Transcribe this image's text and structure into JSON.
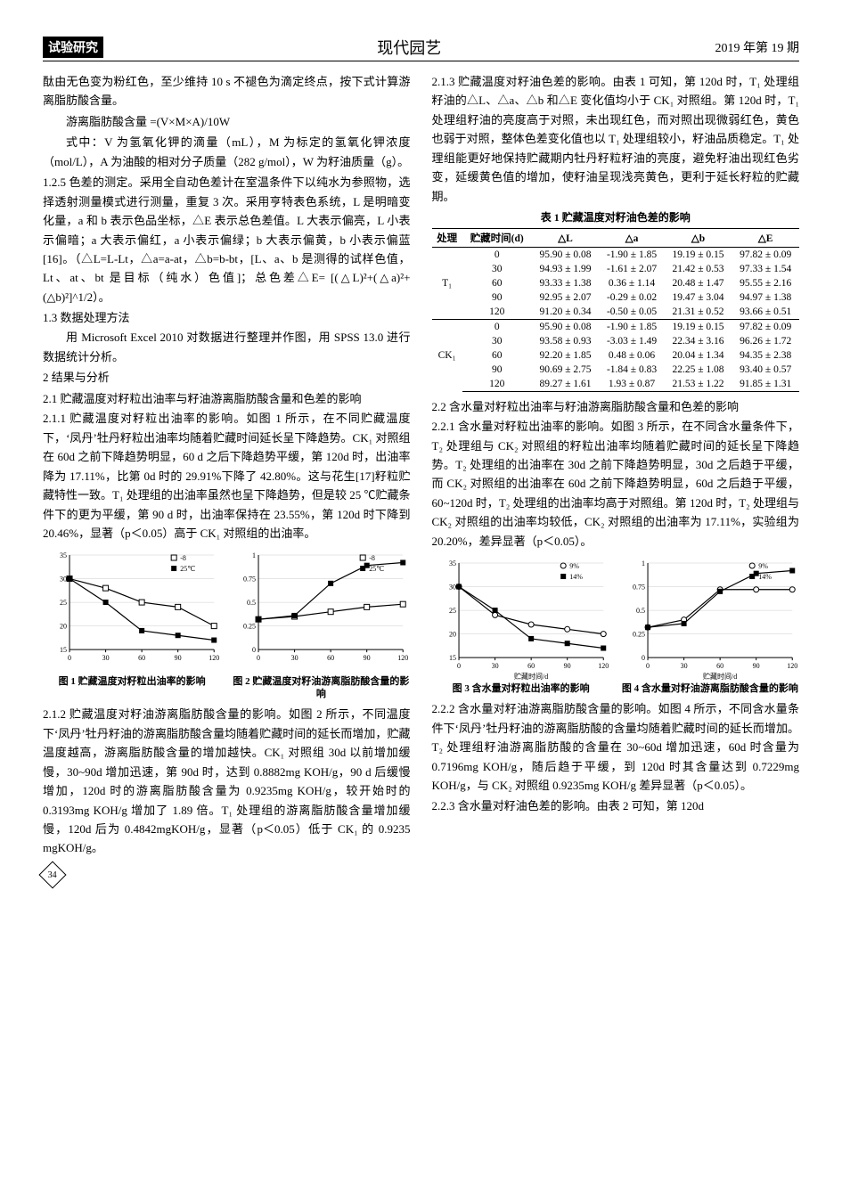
{
  "header": {
    "left": "试验研究",
    "center": "现代园艺",
    "right": "2019 年第 19 期"
  },
  "page_number": "34",
  "left_col": {
    "p0": "酞由无色变为粉红色，至少维持 10 s 不褪色为滴定终点，按下式计算游离脂肪酸含量。",
    "formula": "游离脂肪酸含量 =(V×M×A)/10W",
    "p1": "式中：V 为氢氧化钾的滴量（mL），M 为标定的氢氧化钾浓度（mol/L），A 为油酸的相对分子质量（282 g/mol），W 为籽油质量（g）。",
    "p2_head": "1.2.5 色差的测定。",
    "p2": "采用全自动色差计在室温条件下以纯水为参照物，选择透射测量模式进行测量，重复 3 次。采用亨特表色系统，L 是明暗变化量，a 和 b 表示色品坐标，△E 表示总色差值。L 大表示偏亮，L 小表示偏暗；a 大表示偏红，a 小表示偏绿；b 大表示偏黄，b 小表示偏蓝[16]。（△L=L-Lt，△a=a-at，△b=b-bt，[L、a、b 是测得的试样色值，Lt、at、bt 是目标（纯水）色值]；总色差△E= [(△L)²+(△a)²+(△b)²]^1/2）。",
    "s13": "1.3  数据处理方法",
    "p3": "用 Microsoft Excel 2010 对数据进行整理并作图，用 SPSS 13.0 进行数据统计分析。",
    "s2": "2  结果与分析",
    "s21": "2.1  贮藏温度对籽粒出油率与籽油游离脂肪酸含量和色差的影响",
    "p211_head": "2.1.1 贮藏温度对籽粒出油率的影响。",
    "p211": "如图 1 所示，在不同贮藏温度下，‘凤丹’牡丹籽粒出油率均随着贮藏时间延长呈下降趋势。CK₁ 对照组在 60d 之前下降趋势明显，60 d 之后下降趋势平缓，第 120d 时，出油率降为 17.11%，比第 0d 时的 29.91%下降了 42.80%。这与花生[17]籽粒贮藏特性一致。T₁ 处理组的出油率虽然也呈下降趋势，但是较 25 ℃贮藏条件下的更为平缓，第 90 d 时，出油率保持在 23.55%，第 120d 时下降到 20.46%，显著（p＜0.05）高于 CK₁ 对照组的出油率。",
    "fig1_caption": "图 1  贮藏温度对籽粒出油率的影响",
    "fig2_caption": "图 2  贮藏温度对籽油游离脂肪酸含量的影响",
    "p212_head": "2.1.2 贮藏温度对籽油游离脂肪酸含量的影响。",
    "p212": "如图 2 所示，不同温度下‘凤丹’牡丹籽油的游离脂肪酸含量均随着贮藏时间的延长而增加，贮藏温度越高，游离脂肪酸含量的增加越快。CK₁ 对照组 30d 以前增加缓慢，30~90d 增加迅速，第 90d 时，达到 0.8882mg KOH/g，90 d 后缓慢增加，120d 时的游离脂肪酸含量为 0.9235mg KOH/g，较开始时的 0.3193mg KOH/g 增加了 1.89 倍。T₁ 处理组的游离脂肪酸含量增加缓慢，120d 后为 0.4842mgKOH/g，显著（p＜0.05）低于 CK₁ 的 0.9235 mgKOH/g。"
  },
  "right_col": {
    "p213_head": "2.1.3 贮藏温度对籽油色差的影响。",
    "p213": "由表 1 可知，第 120d 时，T₁ 处理组籽油的△L、△a、△b 和△E 变化值均小于 CK₁ 对照组。第 120d 时，T₁ 处理组籽油的亮度高于对照，未出现红色，而对照出现微弱红色，黄色也弱于对照，整体色差变化值也以 T₁ 处理组较小，籽油品质稳定。T₁ 处理组能更好地保持贮藏期内牡丹籽粒籽油的亮度，避免籽油出现红色劣变，延缓黄色值的增加，使籽油呈现浅亮黄色，更利于延长籽粒的贮藏期。",
    "table1_title": "表 1  贮藏温度对籽油色差的影响",
    "s22": "2.2  含水量对籽粒出油率与籽油游离脂肪酸含量和色差的影响",
    "p221_head": "2.2.1 含水量对籽粒出油率的影响。",
    "p221": "如图 3 所示，在不同含水量条件下，T₂ 处理组与 CK₂ 对照组的籽粒出油率均随着贮藏时间的延长呈下降趋势。T₂ 处理组的出油率在 30d 之前下降趋势明显，30d 之后趋于平缓，而 CK₂ 对照组的出油率在 60d 之前下降趋势明显，60d 之后趋于平缓，60~120d 时，T₂ 处理组的出油率均高于对照组。第 120d 时，T₂ 处理组与 CK₂ 对照组的出油率均较低，CK₂ 对照组的出油率为 17.11%，实验组为 20.20%，差异显著（p＜0.05）。",
    "fig3_caption": "图 3  含水量对籽粒出油率的影响",
    "fig4_caption": "图 4 含水量对籽油游离脂肪酸含量的影响",
    "p222_head": "2.2.2 含水量对籽油游离脂肪酸含量的影响。",
    "p222": "如图 4 所示，不同含水量条件下‘凤丹’牡丹籽油的游离脂肪酸的含量均随着贮藏时间的延长而增加。T₂ 处理组籽油游离脂肪酸的含量在 30~60d 增加迅速，60d 时含量为 0.7196mg KOH/g，随后趋于平缓，到 120d 时其含量达到 0.7229mg KOH/g，与 CK₂ 对照组 0.9235mg KOH/g 差异显著（p＜0.05）。",
    "p223_head": "2.2.3 含水量对籽油色差的影响。",
    "p223": "由表 2 可知，第 120d"
  },
  "table1": {
    "columns": [
      "处理",
      "贮藏时间(d)",
      "△L",
      "△a",
      "△b",
      "△E"
    ],
    "groups": [
      {
        "label": "T₁",
        "rows": [
          [
            "0",
            "95.90 ± 0.08",
            "-1.90 ± 1.85",
            "19.19 ± 0.15",
            "97.82 ± 0.09"
          ],
          [
            "30",
            "94.93 ± 1.99",
            "-1.61 ± 2.07",
            "21.42 ± 0.53",
            "97.33 ± 1.54"
          ],
          [
            "60",
            "93.33 ± 1.38",
            "0.36 ± 1.14",
            "20.48 ± 1.47",
            "95.55 ± 2.16"
          ],
          [
            "90",
            "92.95 ± 2.07",
            "-0.29 ± 0.02",
            "19.47 ± 3.04",
            "94.97 ± 1.38"
          ],
          [
            "120",
            "91.20 ± 0.34",
            "-0.50 ± 0.05",
            "21.31 ± 0.52",
            "93.66 ± 0.51"
          ]
        ]
      },
      {
        "label": "CK₁",
        "rows": [
          [
            "0",
            "95.90 ± 0.08",
            "-1.90 ± 1.85",
            "19.19 ± 0.15",
            "97.82 ± 0.09"
          ],
          [
            "30",
            "93.58 ± 0.93",
            "-3.03 ± 1.49",
            "22.34 ± 3.16",
            "96.26 ± 1.72"
          ],
          [
            "60",
            "92.20 ± 1.85",
            "0.48 ± 0.06",
            "20.04 ± 1.34",
            "94.35 ± 2.38"
          ],
          [
            "90",
            "90.69 ± 2.75",
            "-1.84 ± 0.83",
            "22.25 ± 1.08",
            "93.40 ± 0.57"
          ],
          [
            "120",
            "89.27 ± 1.61",
            "1.93 ± 0.87",
            "21.53 ± 1.22",
            "91.85 ± 1.31"
          ]
        ]
      }
    ]
  },
  "charts": {
    "fig1": {
      "type": "line",
      "xlim": [
        0,
        120
      ],
      "ylim": [
        15,
        35
      ],
      "ytick_step": 5,
      "x": [
        0,
        30,
        60,
        90,
        120
      ],
      "series": [
        {
          "name": "T₁",
          "marker": "square-open",
          "color": "#000000",
          "y": [
            30,
            28,
            25,
            24,
            20
          ]
        },
        {
          "name": "CK₁(25℃)",
          "marker": "square-filled",
          "color": "#000000",
          "y": [
            30,
            25,
            19,
            18,
            17
          ]
        }
      ],
      "legend_labels": [
        "-8",
        "25℃"
      ],
      "bg": "#ffffff",
      "grid": "#cccccc",
      "axis": "#000000",
      "fontsize": 8
    },
    "fig2": {
      "type": "line",
      "xlim": [
        0,
        120
      ],
      "ylim": [
        0,
        1
      ],
      "ytick_step": 0.25,
      "x": [
        0,
        30,
        60,
        90,
        120
      ],
      "series": [
        {
          "name": "T₁",
          "marker": "square-open",
          "color": "#000000",
          "y": [
            0.32,
            0.35,
            0.4,
            0.45,
            0.48
          ]
        },
        {
          "name": "CK₁(25℃)",
          "marker": "square-filled",
          "color": "#000000",
          "y": [
            0.32,
            0.36,
            0.7,
            0.89,
            0.92
          ]
        }
      ],
      "legend_labels": [
        "-8",
        "25℃"
      ],
      "bg": "#ffffff",
      "grid": "#cccccc",
      "axis": "#000000",
      "fontsize": 8
    },
    "fig3": {
      "type": "line",
      "xlim": [
        0,
        120
      ],
      "ylim": [
        15,
        35
      ],
      "ytick_step": 5,
      "x": [
        0,
        30,
        60,
        90,
        120
      ],
      "series": [
        {
          "name": "T₂(9%)",
          "marker": "circle-open",
          "color": "#000000",
          "y": [
            30,
            24,
            22,
            21,
            20
          ]
        },
        {
          "name": "CK₂(14%)",
          "marker": "square-filled",
          "color": "#000000",
          "y": [
            30,
            25,
            19,
            18,
            17
          ]
        }
      ],
      "legend_labels": [
        "9%",
        "14%"
      ],
      "xlabel": "贮藏时间/d",
      "bg": "#ffffff",
      "grid": "#cccccc",
      "axis": "#000000",
      "fontsize": 8
    },
    "fig4": {
      "type": "line",
      "xlim": [
        0,
        120
      ],
      "ylim": [
        0,
        1
      ],
      "ytick_step": 0.25,
      "x": [
        0,
        30,
        60,
        90,
        120
      ],
      "series": [
        {
          "name": "T₂(9%)",
          "marker": "circle-open",
          "color": "#000000",
          "y": [
            0.32,
            0.4,
            0.72,
            0.72,
            0.72
          ]
        },
        {
          "name": "CK₂(14%)",
          "marker": "square-filled",
          "color": "#000000",
          "y": [
            0.32,
            0.36,
            0.7,
            0.89,
            0.92
          ]
        }
      ],
      "legend_labels": [
        "9%",
        "14%"
      ],
      "xlabel": "贮藏时间/d",
      "bg": "#ffffff",
      "grid": "#cccccc",
      "axis": "#000000",
      "fontsize": 8
    }
  }
}
